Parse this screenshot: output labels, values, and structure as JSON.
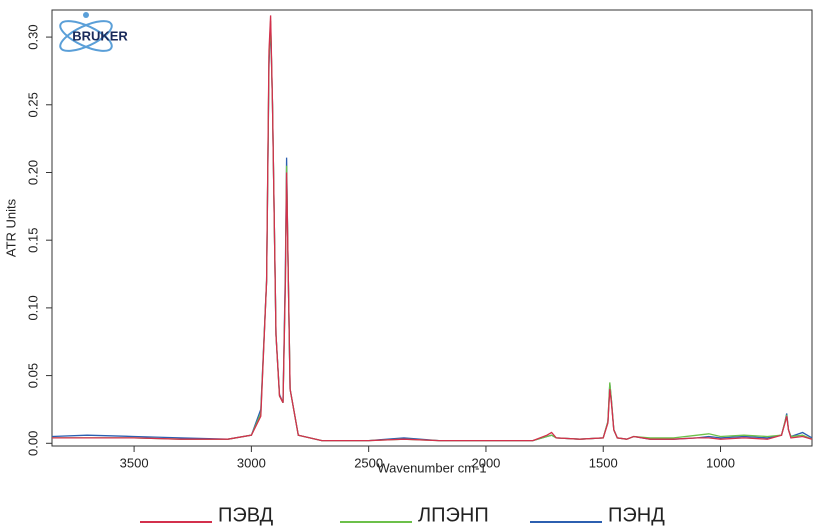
{
  "chart_data": {
    "type": "line",
    "logo": "BRUKER",
    "xlabel": "Wavenumber cm-1",
    "ylabel": "ATR Units",
    "x": [
      3850,
      3700,
      3500,
      3300,
      3100,
      3000,
      2960,
      2935,
      2925,
      2918,
      2910,
      2895,
      2880,
      2865,
      2855,
      2850,
      2845,
      2835,
      2800,
      2700,
      2500,
      2350,
      2200,
      2000,
      1800,
      1740,
      1720,
      1700,
      1600,
      1500,
      1480,
      1472,
      1465,
      1455,
      1440,
      1400,
      1370,
      1300,
      1200,
      1100,
      1050,
      1000,
      900,
      800,
      740,
      725,
      718,
      710,
      700,
      650,
      610
    ],
    "series": [
      {
        "name": "ПЭВД",
        "color": "#d3304c",
        "values": [
          0.004,
          0.004,
          0.004,
          0.003,
          0.003,
          0.006,
          0.02,
          0.12,
          0.29,
          0.316,
          0.25,
          0.08,
          0.035,
          0.03,
          0.12,
          0.2,
          0.15,
          0.04,
          0.006,
          0.002,
          0.002,
          0.003,
          0.002,
          0.002,
          0.002,
          0.006,
          0.008,
          0.004,
          0.003,
          0.004,
          0.015,
          0.04,
          0.03,
          0.01,
          0.004,
          0.003,
          0.005,
          0.003,
          0.003,
          0.004,
          0.004,
          0.003,
          0.004,
          0.003,
          0.006,
          0.015,
          0.02,
          0.01,
          0.004,
          0.005,
          0.003
        ]
      },
      {
        "name": "ЛПЭНП",
        "color": "#6cc04a",
        "values": [
          0.004,
          0.004,
          0.004,
          0.003,
          0.003,
          0.006,
          0.022,
          0.12,
          0.285,
          0.312,
          0.25,
          0.08,
          0.035,
          0.03,
          0.12,
          0.205,
          0.15,
          0.04,
          0.006,
          0.002,
          0.002,
          0.003,
          0.002,
          0.002,
          0.002,
          0.005,
          0.006,
          0.004,
          0.003,
          0.004,
          0.016,
          0.045,
          0.032,
          0.01,
          0.004,
          0.003,
          0.005,
          0.004,
          0.004,
          0.006,
          0.007,
          0.005,
          0.006,
          0.005,
          0.006,
          0.016,
          0.021,
          0.01,
          0.005,
          0.006,
          0.003
        ]
      },
      {
        "name": "ПЭНД",
        "color": "#2c5fb0",
        "values": [
          0.005,
          0.006,
          0.005,
          0.004,
          0.003,
          0.006,
          0.025,
          0.12,
          0.28,
          0.31,
          0.25,
          0.08,
          0.036,
          0.03,
          0.13,
          0.211,
          0.15,
          0.04,
          0.006,
          0.002,
          0.002,
          0.004,
          0.002,
          0.002,
          0.002,
          0.005,
          0.006,
          0.004,
          0.003,
          0.004,
          0.016,
          0.044,
          0.032,
          0.01,
          0.004,
          0.003,
          0.005,
          0.003,
          0.003,
          0.004,
          0.005,
          0.004,
          0.005,
          0.004,
          0.006,
          0.016,
          0.022,
          0.01,
          0.005,
          0.008,
          0.004
        ]
      }
    ],
    "xlim": [
      3850,
      610
    ],
    "xticks": [
      3500,
      3000,
      2500,
      2000,
      1500,
      1000
    ],
    "ylim": [
      -0.002,
      0.32
    ],
    "yticks": [
      {
        "value": 0,
        "label": "0.00"
      },
      {
        "value": 0.05,
        "label": "0.05"
      },
      {
        "value": 0.1,
        "label": "0.10"
      },
      {
        "value": 0.15,
        "label": "0.15"
      },
      {
        "value": 0.2,
        "label": "0.20"
      },
      {
        "value": 0.25,
        "label": "0.25"
      },
      {
        "value": 0.3,
        "label": "0.30"
      }
    ],
    "legend": "bottom"
  }
}
